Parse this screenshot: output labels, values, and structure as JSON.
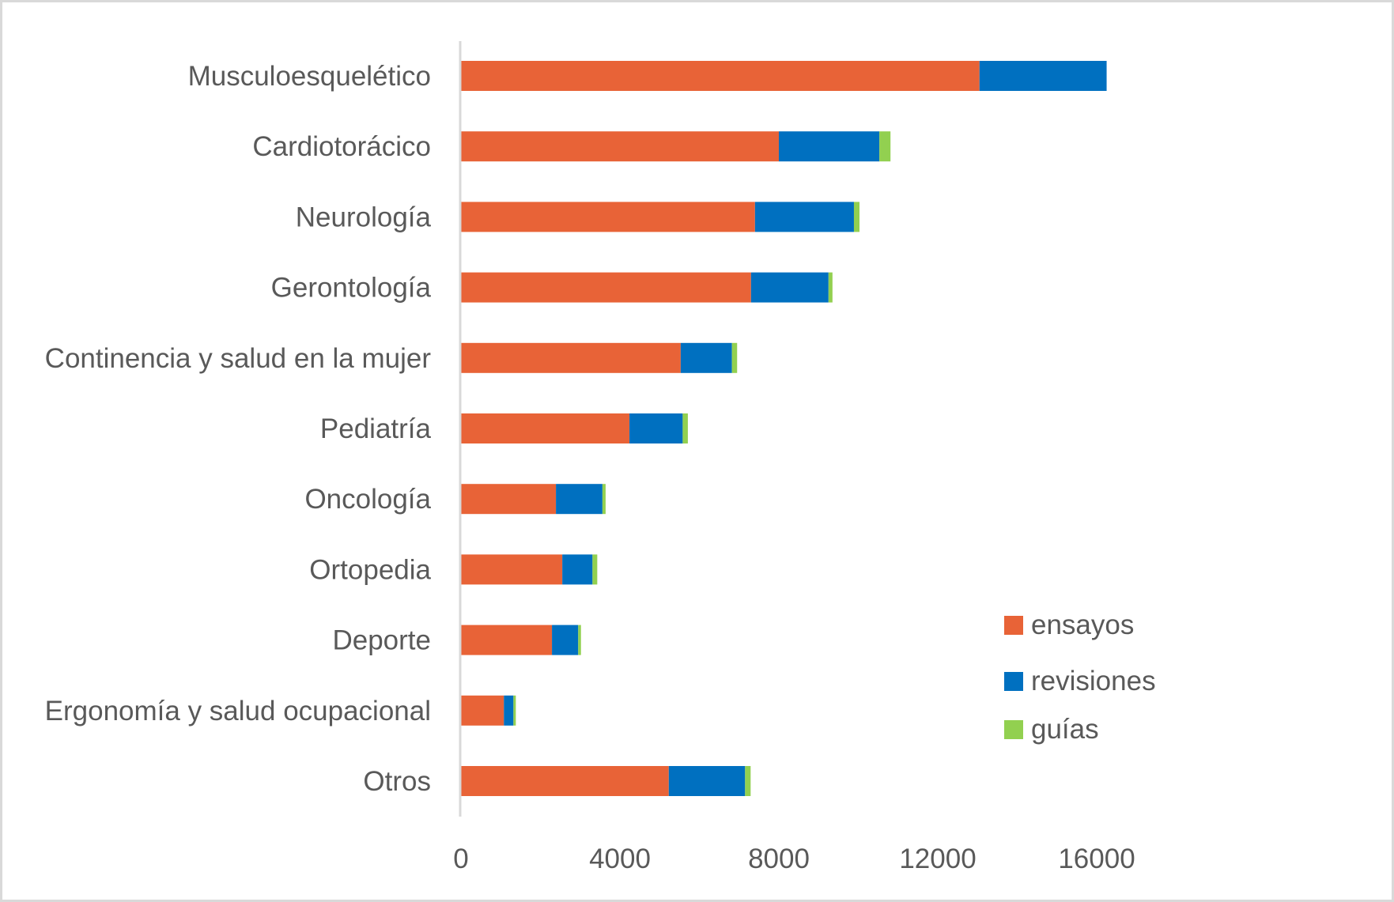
{
  "chart_data": {
    "type": "bar",
    "orientation": "horizontal",
    "stacked": true,
    "title": "",
    "xlabel": "",
    "ylabel": "",
    "xlim": [
      0,
      16000
    ],
    "xticks": [
      0,
      4000,
      8000,
      12000,
      16000
    ],
    "tick_labels": [
      "0",
      "4000",
      "8000",
      "12000",
      "16000"
    ],
    "grid": false,
    "legend_position": "bottom-right",
    "categories": [
      "Musculoesquelético",
      "Cardiotorácico",
      "Neurología",
      "Gerontología",
      "Continencia y salud en la mujer",
      "Pediatría",
      "Oncología",
      "Ortopedia",
      "Deporte",
      "Ergonomía y salud ocupacional",
      "Otros"
    ],
    "series": [
      {
        "name": "ensayos",
        "color": "#E86337",
        "values": [
          13050,
          8000,
          7400,
          7300,
          5530,
          4240,
          2390,
          2550,
          2290,
          1080,
          5230
        ]
      },
      {
        "name": "revisiones",
        "color": "#0070C0",
        "values": [
          3200,
          2530,
          2490,
          1950,
          1290,
          1340,
          1170,
          760,
          660,
          240,
          1920
        ]
      },
      {
        "name": "guías",
        "color": "#92D050",
        "values": [
          0,
          280,
          140,
          100,
          130,
          130,
          80,
          120,
          70,
          60,
          140
        ]
      }
    ]
  },
  "colors": {
    "axis": "#d9d9d9",
    "text": "#595959",
    "border": "#d9d9d9"
  }
}
